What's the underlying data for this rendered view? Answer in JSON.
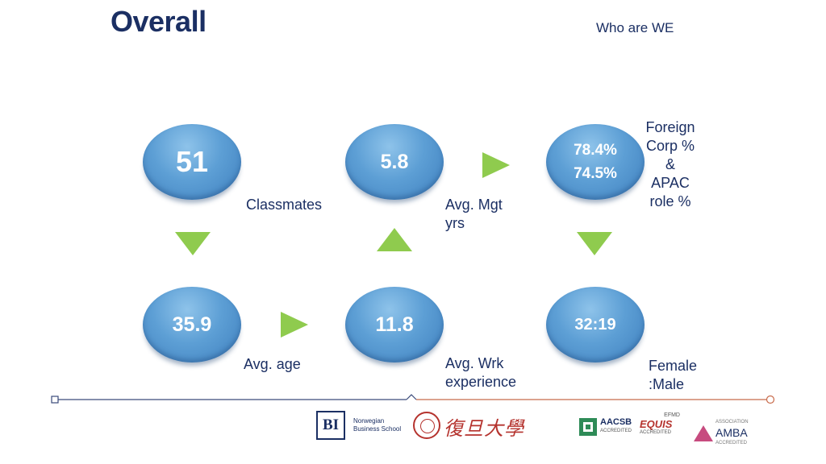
{
  "header": {
    "title": "Overall",
    "subtitle": "Who are WE"
  },
  "stats": [
    {
      "id": "classmates",
      "value": "51",
      "label": "Classmates"
    },
    {
      "id": "avg-mgt-yrs",
      "value": "5.8",
      "label": "Avg. Mgt yrs"
    },
    {
      "id": "foreign-corp-apac",
      "value_lines": [
        "78.4%",
        "74.5%"
      ],
      "label_lines": [
        "Foreign",
        "Corp %",
        "&",
        "APAC",
        "role %"
      ]
    },
    {
      "id": "avg-age",
      "value": "35.9",
      "label": "Avg. age"
    },
    {
      "id": "avg-wrk-experience",
      "value": "11.8",
      "label_lines": [
        "Avg. Wrk",
        "experience"
      ]
    },
    {
      "id": "female-male",
      "value": "32:19",
      "label_lines": [
        "Female",
        ":Male"
      ]
    }
  ],
  "footer": {
    "bi_logo": {
      "mark": "BI",
      "line1": "Norwegian",
      "line2": "Business School"
    },
    "fudan_logo": {
      "text": "復旦大學"
    },
    "aacsb": {
      "name": "AACSB",
      "sub": "ACCREDITED"
    },
    "equis": {
      "top": "EFMD",
      "name": "EQUIS",
      "sub": "ACCREDITED"
    },
    "amba": {
      "top": "ASSOCIATION",
      "name": "AMBA",
      "sub": "ACCREDITED"
    }
  },
  "colors": {
    "title": "#1b2f63",
    "circle": "#5d9fd5",
    "arrow": "#8fcb4e",
    "timeline_left": "#3a4a7a",
    "timeline_right": "#c86a4a"
  },
  "icons": [
    "arrow-down-icon",
    "arrow-up-icon",
    "arrow-right-icon",
    "timeline-start-icon",
    "timeline-end-icon"
  ]
}
